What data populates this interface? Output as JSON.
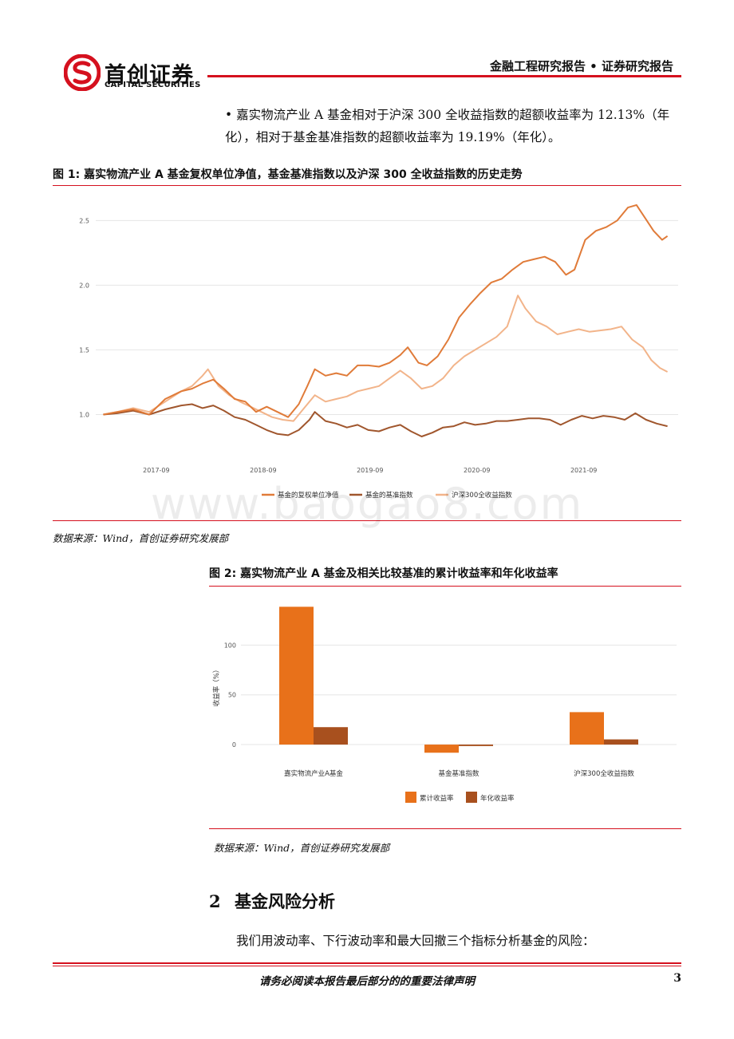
{
  "header": {
    "logo_cn": "首创证券",
    "logo_en": "CAPITAL SECURITIES",
    "report_type": "金融工程研究报告 • 证券研究报告"
  },
  "bullet": {
    "text": "嘉实物流产业 A 基金相对于沪深 300 全收益指数的超额收益率为 12.13%（年化），相对于基金基准指数的超额收益率为 19.19%（年化）。"
  },
  "figure1": {
    "caption": "图 1: 嘉实物流产业 A 基金复权单位净值，基金基准指数以及沪深 300 全收益指数的历史走势",
    "source": "数据来源：Wind，首创证券研究发展部"
  },
  "figure2": {
    "caption": "图 2: 嘉实物流产业 A 基金及相关比较基准的累计收益率和年化收益率",
    "source": "数据来源：Wind，首创证券研究发展部"
  },
  "section": {
    "number": "2",
    "title": "基金风险分析",
    "paragraph": "我们用波动率、下行波动率和最大回撤三个指标分析基金的风险："
  },
  "footer": {
    "notice": "请务必阅读本报告最后部分的的重要法律声明",
    "page": "3"
  },
  "watermark": "www.baogao8.com",
  "colors": {
    "brand_red": "#d5101e",
    "series_fund": "#e07b39",
    "series_benchmark": "#a0562d",
    "series_csi300": "#f2b48a",
    "bar_cumulative": "#e8711a",
    "bar_annual": "#a8501e"
  },
  "chart_data": [
    {
      "type": "line",
      "x_ticks": [
        "2017-09",
        "2018-09",
        "2019-09",
        "2020-09",
        "2021-09"
      ],
      "y_ticks": [
        "1.0",
        "1.5",
        "2.0",
        "2.5"
      ],
      "ylim": [
        0.75,
        2.65
      ],
      "xlim": [
        2017.1,
        2022.55
      ],
      "grid": true,
      "legend_position": "bottom",
      "series": [
        {
          "name": "基金的复权单位净值",
          "points": [
            [
              2017.17,
              1.0
            ],
            [
              2017.3,
              1.02
            ],
            [
              2017.45,
              1.04
            ],
            [
              2017.6,
              1.0
            ],
            [
              2017.75,
              1.12
            ],
            [
              2017.9,
              1.18
            ],
            [
              2018.0,
              1.2
            ],
            [
              2018.1,
              1.24
            ],
            [
              2018.2,
              1.27
            ],
            [
              2018.3,
              1.2
            ],
            [
              2018.4,
              1.12
            ],
            [
              2018.5,
              1.1
            ],
            [
              2018.6,
              1.02
            ],
            [
              2018.7,
              1.06
            ],
            [
              2018.8,
              1.02
            ],
            [
              2018.9,
              0.98
            ],
            [
              2019.0,
              1.08
            ],
            [
              2019.08,
              1.22
            ],
            [
              2019.15,
              1.35
            ],
            [
              2019.25,
              1.3
            ],
            [
              2019.35,
              1.32
            ],
            [
              2019.45,
              1.3
            ],
            [
              2019.55,
              1.38
            ],
            [
              2019.65,
              1.38
            ],
            [
              2019.75,
              1.37
            ],
            [
              2019.85,
              1.4
            ],
            [
              2019.95,
              1.46
            ],
            [
              2020.02,
              1.52
            ],
            [
              2020.12,
              1.4
            ],
            [
              2020.2,
              1.38
            ],
            [
              2020.3,
              1.45
            ],
            [
              2020.4,
              1.58
            ],
            [
              2020.5,
              1.75
            ],
            [
              2020.6,
              1.85
            ],
            [
              2020.7,
              1.94
            ],
            [
              2020.8,
              2.02
            ],
            [
              2020.9,
              2.05
            ],
            [
              2021.0,
              2.12
            ],
            [
              2021.1,
              2.18
            ],
            [
              2021.2,
              2.2
            ],
            [
              2021.3,
              2.22
            ],
            [
              2021.4,
              2.18
            ],
            [
              2021.5,
              2.08
            ],
            [
              2021.58,
              2.12
            ],
            [
              2021.68,
              2.35
            ],
            [
              2021.78,
              2.42
            ],
            [
              2021.88,
              2.45
            ],
            [
              2021.98,
              2.5
            ],
            [
              2022.08,
              2.6
            ],
            [
              2022.16,
              2.62
            ],
            [
              2022.24,
              2.52
            ],
            [
              2022.32,
              2.42
            ],
            [
              2022.4,
              2.35
            ],
            [
              2022.45,
              2.38
            ]
          ]
        },
        {
          "name": "基金的基准指数",
          "points": [
            [
              2017.17,
              1.0
            ],
            [
              2017.3,
              1.01
            ],
            [
              2017.45,
              1.03
            ],
            [
              2017.6,
              1.0
            ],
            [
              2017.75,
              1.04
            ],
            [
              2017.9,
              1.07
            ],
            [
              2018.0,
              1.08
            ],
            [
              2018.1,
              1.05
            ],
            [
              2018.2,
              1.07
            ],
            [
              2018.3,
              1.03
            ],
            [
              2018.4,
              0.98
            ],
            [
              2018.5,
              0.96
            ],
            [
              2018.6,
              0.92
            ],
            [
              2018.7,
              0.88
            ],
            [
              2018.8,
              0.85
            ],
            [
              2018.9,
              0.84
            ],
            [
              2019.0,
              0.88
            ],
            [
              2019.1,
              0.96
            ],
            [
              2019.15,
              1.02
            ],
            [
              2019.25,
              0.95
            ],
            [
              2019.35,
              0.93
            ],
            [
              2019.45,
              0.9
            ],
            [
              2019.55,
              0.92
            ],
            [
              2019.65,
              0.88
            ],
            [
              2019.75,
              0.87
            ],
            [
              2019.85,
              0.9
            ],
            [
              2019.95,
              0.92
            ],
            [
              2020.05,
              0.87
            ],
            [
              2020.15,
              0.83
            ],
            [
              2020.25,
              0.86
            ],
            [
              2020.35,
              0.9
            ],
            [
              2020.45,
              0.91
            ],
            [
              2020.55,
              0.94
            ],
            [
              2020.65,
              0.92
            ],
            [
              2020.75,
              0.93
            ],
            [
              2020.85,
              0.95
            ],
            [
              2020.95,
              0.95
            ],
            [
              2021.05,
              0.96
            ],
            [
              2021.15,
              0.97
            ],
            [
              2021.25,
              0.97
            ],
            [
              2021.35,
              0.96
            ],
            [
              2021.45,
              0.92
            ],
            [
              2021.55,
              0.96
            ],
            [
              2021.65,
              0.99
            ],
            [
              2021.75,
              0.97
            ],
            [
              2021.85,
              0.99
            ],
            [
              2021.95,
              0.98
            ],
            [
              2022.05,
              0.96
            ],
            [
              2022.15,
              1.01
            ],
            [
              2022.25,
              0.96
            ],
            [
              2022.35,
              0.93
            ],
            [
              2022.45,
              0.91
            ]
          ]
        },
        {
          "name": "沪深300全收益指数",
          "points": [
            [
              2017.17,
              1.0
            ],
            [
              2017.3,
              1.02
            ],
            [
              2017.45,
              1.05
            ],
            [
              2017.6,
              1.02
            ],
            [
              2017.75,
              1.1
            ],
            [
              2017.9,
              1.18
            ],
            [
              2018.0,
              1.22
            ],
            [
              2018.1,
              1.3
            ],
            [
              2018.15,
              1.35
            ],
            [
              2018.25,
              1.22
            ],
            [
              2018.35,
              1.15
            ],
            [
              2018.45,
              1.1
            ],
            [
              2018.55,
              1.06
            ],
            [
              2018.65,
              1.02
            ],
            [
              2018.75,
              0.98
            ],
            [
              2018.85,
              0.96
            ],
            [
              2018.95,
              0.95
            ],
            [
              2019.05,
              1.05
            ],
            [
              2019.15,
              1.15
            ],
            [
              2019.25,
              1.1
            ],
            [
              2019.35,
              1.12
            ],
            [
              2019.45,
              1.14
            ],
            [
              2019.55,
              1.18
            ],
            [
              2019.65,
              1.2
            ],
            [
              2019.75,
              1.22
            ],
            [
              2019.85,
              1.28
            ],
            [
              2019.95,
              1.34
            ],
            [
              2020.05,
              1.28
            ],
            [
              2020.15,
              1.2
            ],
            [
              2020.25,
              1.22
            ],
            [
              2020.35,
              1.28
            ],
            [
              2020.45,
              1.38
            ],
            [
              2020.55,
              1.45
            ],
            [
              2020.65,
              1.5
            ],
            [
              2020.75,
              1.55
            ],
            [
              2020.85,
              1.6
            ],
            [
              2020.95,
              1.68
            ],
            [
              2021.05,
              1.92
            ],
            [
              2021.12,
              1.82
            ],
            [
              2021.22,
              1.72
            ],
            [
              2021.32,
              1.68
            ],
            [
              2021.42,
              1.62
            ],
            [
              2021.52,
              1.64
            ],
            [
              2021.62,
              1.66
            ],
            [
              2021.72,
              1.64
            ],
            [
              2021.82,
              1.65
            ],
            [
              2021.92,
              1.66
            ],
            [
              2022.02,
              1.68
            ],
            [
              2022.12,
              1.58
            ],
            [
              2022.22,
              1.52
            ],
            [
              2022.3,
              1.42
            ],
            [
              2022.38,
              1.36
            ],
            [
              2022.45,
              1.33
            ]
          ]
        }
      ]
    },
    {
      "type": "bar",
      "categories": [
        "嘉实物流产业A基金",
        "基金基准指数",
        "沪深300全收益指数"
      ],
      "ylabel": "收益率（%）",
      "y_ticks": [
        "0",
        "50",
        "100"
      ],
      "ylim": [
        -12,
        142
      ],
      "grid": true,
      "legend_position": "bottom",
      "series": [
        {
          "name": "累计收益率",
          "values": [
            138.5,
            -8.2,
            32.6
          ]
        },
        {
          "name": "年化收益率",
          "values": [
            17.5,
            -1.5,
            5.2
          ]
        }
      ]
    }
  ]
}
